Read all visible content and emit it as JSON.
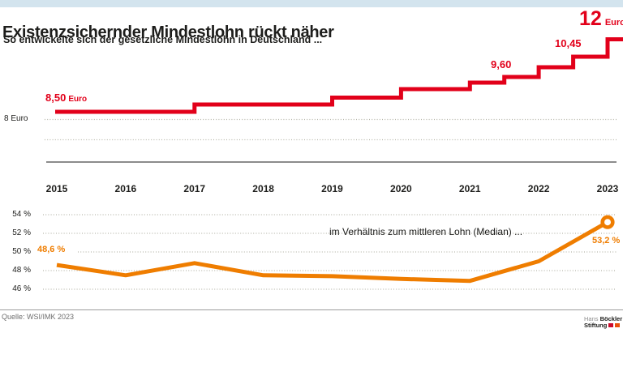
{
  "header": {
    "title": "Existenzsichernder Mindestlohn rückt näher",
    "subtitle": "So entwickelte sich der gesetzliche Mindestlohn in Deutschland ..."
  },
  "chart_data": [
    {
      "type": "line",
      "subtype": "step",
      "title": "Gesetzlicher Mindestlohn in Deutschland",
      "unit": "Euro",
      "x": [
        2015,
        2017,
        2019,
        2020,
        2021,
        2021.5,
        2022,
        2022.5,
        2023
      ],
      "values": [
        8.5,
        8.84,
        9.19,
        9.35,
        9.5,
        9.6,
        9.82,
        10.45,
        12.0
      ],
      "x_ticks": [
        "2015",
        "2016",
        "2017",
        "2018",
        "2019",
        "2020",
        "2021",
        "2022",
        "2023"
      ],
      "xlim": [
        2015,
        2023.25
      ],
      "y_axis_label": "8 Euro",
      "grid": "dotted lines at 8 and 7 Euro, solid baseline",
      "legend_position": "none",
      "point_labels": [
        "8,50 Euro",
        "9,60",
        "10,45",
        "12 Euro"
      ]
    },
    {
      "type": "line",
      "title": "Mindestlohn im Verhältnis zum mittleren Lohn (Median)",
      "unit": "%",
      "categories": [
        "2015",
        "2016",
        "2017",
        "2018",
        "2019",
        "2020",
        "2021",
        "2022",
        "2023"
      ],
      "values": [
        48.6,
        47.5,
        48.8,
        47.5,
        47.4,
        47.1,
        46.9,
        49.0,
        53.2
      ],
      "y_ticks": [
        "54 %",
        "52 %",
        "50 %",
        "48 %",
        "46 %"
      ],
      "y_tick_values": [
        54,
        52,
        50,
        48,
        46
      ],
      "ylim": [
        45.5,
        54.5
      ],
      "grid": "dotted horizontal lines",
      "annotation": "im Verhältnis zum mittleren Lohn (Median) ...",
      "first_point_label": "48,6 %",
      "last_point_label": "53,2 %",
      "end_marker": "open-circle"
    }
  ],
  "labels": {
    "wage_start_value": "8,50",
    "wage_start_unit": "Euro",
    "wage_960": "9,60",
    "wage_1045": "10,45",
    "wage_end_value": "12",
    "wage_end_unit": "Euro",
    "axis_8_euro": "8 Euro",
    "median_note": "im Verhältnis zum mittleren Lohn (Median) ...",
    "median_start": "48,6 %",
    "median_end": "53,2 %"
  },
  "footer": {
    "source": "Quelle: WSI/IMK 2023",
    "logo": {
      "name1": "Hans",
      "name2": "Böckler",
      "name3": "Stiftung"
    }
  },
  "colors": {
    "wage_line": "#e2001a",
    "median_line": "#ef7d00",
    "top_bar": "#d3e4ee",
    "text": "#1d1d1b",
    "grid_dotted": "#b8b8ac",
    "axis_solid": "#8c8c8c",
    "source_text": "#6e6e6e",
    "logo_red": "#cc0a2b",
    "logo_orange": "#ea500b"
  }
}
